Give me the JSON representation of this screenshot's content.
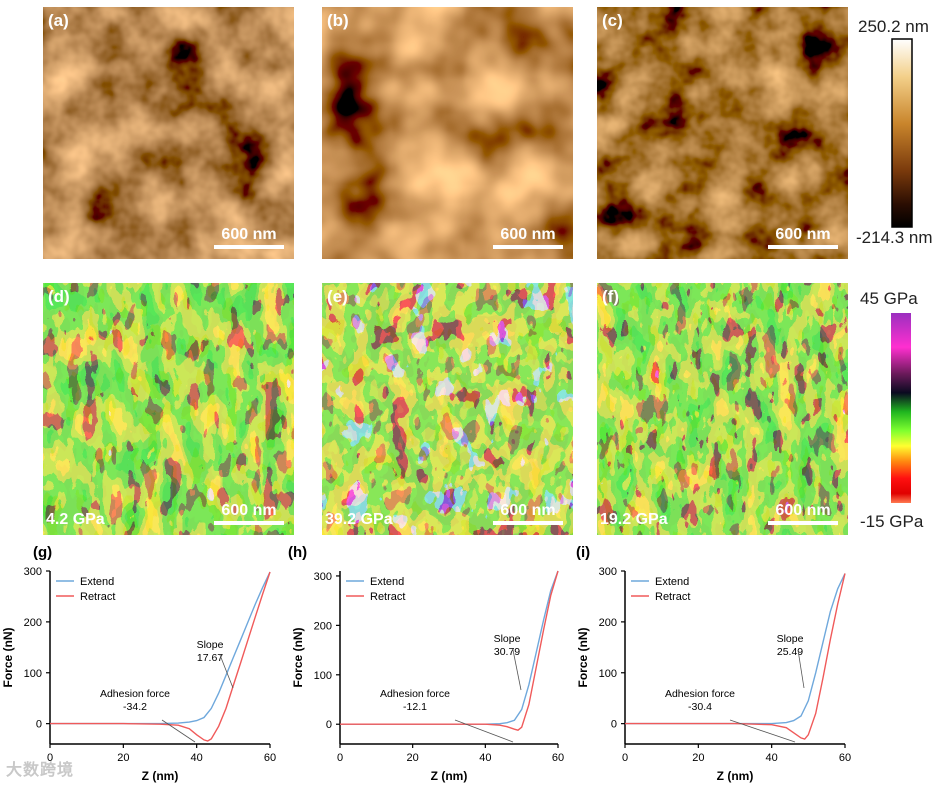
{
  "topography": {
    "panels": [
      {
        "label": "(a)",
        "scale_bar": "600 nm"
      },
      {
        "label": "(b)",
        "scale_bar": "600 nm"
      },
      {
        "label": "(c)",
        "scale_bar": "600 nm"
      }
    ],
    "colorbar": {
      "max": "250.2 nm",
      "min": "-214.3 nm"
    }
  },
  "modulus": {
    "panels": [
      {
        "label": "(d)",
        "scale_bar": "600 nm",
        "value": "4.2 GPa"
      },
      {
        "label": "(e)",
        "scale_bar": "600 nm",
        "value": "39.2 GPa"
      },
      {
        "label": "(f)",
        "scale_bar": "600 nm",
        "value": "19.2 GPa"
      }
    ],
    "colorbar": {
      "max": "45 GPa",
      "min": "-15 GPa"
    }
  },
  "colors": {
    "extend": "#6fa8dc",
    "retract": "#f05a5a"
  },
  "watermark": "大数跨境",
  "chart_data": [
    {
      "type": "line",
      "title": "(g)",
      "xlabel": "Z (nm)",
      "ylabel": "Force (nN)",
      "xlim": [
        0,
        60
      ],
      "ylim": [
        -40,
        300
      ],
      "xticks": [
        "0",
        "20",
        "40",
        "60"
      ],
      "yticks": [
        "0",
        "100",
        "200",
        "300"
      ],
      "legend": [
        "Extend",
        "Retract"
      ],
      "legend_position": "top-left",
      "annotations": [
        {
          "text": "Slope",
          "value": "17.67"
        },
        {
          "text": "Adhesion force",
          "value": "-34.2"
        }
      ],
      "series": [
        {
          "name": "Extend",
          "x": [
            0,
            10,
            20,
            30,
            35,
            38,
            40,
            42,
            44,
            46,
            48,
            50,
            52,
            54,
            56,
            58,
            60
          ],
          "y": [
            0,
            0,
            0,
            0,
            1,
            3,
            6,
            12,
            30,
            60,
            95,
            130,
            165,
            200,
            235,
            268,
            298
          ]
        },
        {
          "name": "Retract",
          "x": [
            0,
            10,
            20,
            30,
            35,
            38,
            40,
            42,
            43,
            44,
            46,
            48,
            50,
            52,
            54,
            56,
            58,
            60
          ],
          "y": [
            0,
            0,
            0,
            -1,
            -3,
            -10,
            -22,
            -32,
            -34.2,
            -30,
            -5,
            30,
            75,
            120,
            165,
            210,
            255,
            298
          ]
        }
      ]
    },
    {
      "type": "line",
      "title": "(h)",
      "xlabel": "Z (nm)",
      "ylabel": "Force (nN)",
      "xlim": [
        0,
        60
      ],
      "ylim": [
        -40,
        310
      ],
      "xticks": [
        "0",
        "20",
        "40",
        "60"
      ],
      "yticks": [
        "0",
        "100",
        "200",
        "300"
      ],
      "legend": [
        "Extend",
        "Retract"
      ],
      "legend_position": "top-left",
      "annotations": [
        {
          "text": "Slope",
          "value": "30.79"
        },
        {
          "text": "Adhesion force",
          "value": "-12.1"
        }
      ],
      "series": [
        {
          "name": "Extend",
          "x": [
            0,
            10,
            20,
            30,
            40,
            44,
            46,
            48,
            50,
            52,
            54,
            56,
            58,
            60
          ],
          "y": [
            0,
            0,
            0,
            0,
            0,
            1,
            3,
            8,
            30,
            80,
            145,
            210,
            270,
            310
          ]
        },
        {
          "name": "Retract",
          "x": [
            0,
            10,
            20,
            30,
            40,
            44,
            46,
            48,
            49,
            50,
            52,
            54,
            56,
            58,
            60
          ],
          "y": [
            0,
            0,
            0,
            0,
            0,
            -2,
            -5,
            -10,
            -12.1,
            -6,
            40,
            115,
            190,
            260,
            310
          ]
        }
      ]
    },
    {
      "type": "line",
      "title": "(i)",
      "xlabel": "Z (nm)",
      "ylabel": "Force (nN)",
      "xlim": [
        0,
        60
      ],
      "ylim": [
        -40,
        300
      ],
      "xticks": [
        "0",
        "20",
        "40",
        "60"
      ],
      "yticks": [
        "0",
        "100",
        "200",
        "300"
      ],
      "legend": [
        "Extend",
        "Retract"
      ],
      "legend_position": "top-left",
      "annotations": [
        {
          "text": "Slope",
          "value": "25.49"
        },
        {
          "text": "Adhesion force",
          "value": "-30.4"
        }
      ],
      "series": [
        {
          "name": "Extend",
          "x": [
            0,
            10,
            20,
            30,
            40,
            44,
            46,
            48,
            50,
            52,
            54,
            56,
            58,
            60
          ],
          "y": [
            0,
            0,
            0,
            0,
            0,
            2,
            6,
            15,
            45,
            100,
            160,
            220,
            265,
            295
          ]
        },
        {
          "name": "Retract",
          "x": [
            0,
            10,
            20,
            30,
            40,
            44,
            46,
            48,
            49,
            50,
            52,
            54,
            56,
            58,
            60
          ],
          "y": [
            0,
            0,
            0,
            0,
            -2,
            -8,
            -18,
            -28,
            -30.4,
            -22,
            20,
            90,
            165,
            235,
            295
          ]
        }
      ]
    }
  ]
}
